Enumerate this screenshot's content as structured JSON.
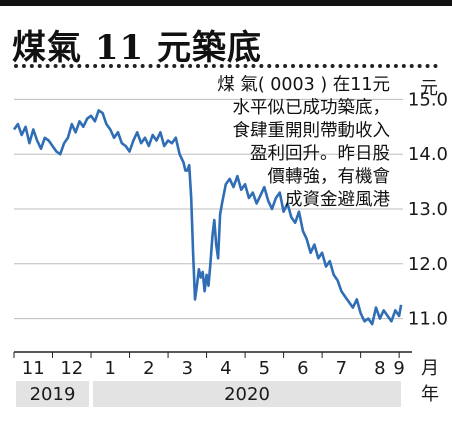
{
  "chart_data": {
    "type": "line",
    "title": "煤氣 11 元築底",
    "annotation": [
      "煤 氣( 0003 ) 在11元",
      "水平似已成功築底，",
      "食肆重開則帶動收入",
      "盈利回升。昨日股",
      "價轉強，有機會",
      "成資金避風港"
    ],
    "ylabel": "元",
    "xlabel": "月",
    "year_axis_label": "年",
    "y_ticks": [
      "15.0",
      "14.0",
      "13.0",
      "12.0",
      "11.0"
    ],
    "y_tick_values": [
      15.0,
      14.0,
      13.0,
      12.0,
      11.0
    ],
    "ylim": [
      10.5,
      15.5
    ],
    "x_range": [
      0,
      10.1
    ],
    "month_labels": [
      {
        "label": "11",
        "x": 0.5
      },
      {
        "label": "12",
        "x": 1.5
      },
      {
        "label": "1",
        "x": 2.5
      },
      {
        "label": "2",
        "x": 3.5
      },
      {
        "label": "3",
        "x": 4.5
      },
      {
        "label": "4",
        "x": 5.5
      },
      {
        "label": "5",
        "x": 6.5
      },
      {
        "label": "6",
        "x": 7.5
      },
      {
        "label": "7",
        "x": 8.5
      },
      {
        "label": "8",
        "x": 9.5
      },
      {
        "label": "9",
        "x": 10.0
      }
    ],
    "years": [
      {
        "label": "2019",
        "start": 0,
        "end": 2
      },
      {
        "label": "2020",
        "start": 2,
        "end": 10.1
      }
    ],
    "grid": true,
    "colors": {
      "line": "#2f6db5",
      "grid": "#bdbdbd",
      "year_band": "#e3e3e3",
      "text": "#1a1a1a"
    },
    "series": [
      {
        "x": [
          0.0,
          0.1,
          0.2,
          0.3,
          0.4,
          0.5,
          0.6,
          0.7,
          0.8,
          0.9,
          1.0,
          1.1,
          1.2,
          1.3,
          1.4,
          1.5,
          1.6,
          1.7,
          1.8,
          1.9,
          2.0,
          2.1,
          2.2,
          2.3,
          2.4,
          2.5,
          2.6,
          2.7,
          2.8,
          2.9,
          3.0,
          3.1,
          3.2,
          3.3,
          3.4,
          3.5,
          3.6,
          3.7,
          3.8,
          3.9,
          4.0,
          4.1,
          4.2,
          4.3,
          4.4,
          4.45,
          4.5,
          4.55,
          4.6,
          4.65,
          4.7,
          4.75,
          4.8,
          4.85,
          4.9,
          4.95,
          5.0,
          5.05,
          5.1,
          5.15,
          5.2,
          5.25,
          5.3,
          5.35,
          5.4,
          5.5,
          5.6,
          5.7,
          5.8,
          5.9,
          6.0,
          6.1,
          6.2,
          6.3,
          6.4,
          6.5,
          6.6,
          6.7,
          6.8,
          6.9,
          7.0,
          7.1,
          7.2,
          7.3,
          7.4,
          7.5,
          7.6,
          7.7,
          7.8,
          7.9,
          8.0,
          8.1,
          8.2,
          8.3,
          8.4,
          8.5,
          8.6,
          8.7,
          8.8,
          8.9,
          9.0,
          9.1,
          9.2,
          9.3,
          9.4,
          9.5,
          9.6,
          9.7,
          9.8,
          9.9,
          10.0,
          10.05
        ],
        "y": [
          14.45,
          14.55,
          14.35,
          14.5,
          14.2,
          14.45,
          14.25,
          14.1,
          14.3,
          14.25,
          14.15,
          14.05,
          14.0,
          14.2,
          14.3,
          14.55,
          14.4,
          14.6,
          14.5,
          14.65,
          14.7,
          14.6,
          14.8,
          14.75,
          14.55,
          14.45,
          14.3,
          14.4,
          14.2,
          14.15,
          14.05,
          14.25,
          14.4,
          14.2,
          14.3,
          14.15,
          14.35,
          14.25,
          14.4,
          14.15,
          14.25,
          14.2,
          14.3,
          14.0,
          13.85,
          13.7,
          13.7,
          13.8,
          13.2,
          12.2,
          11.35,
          11.6,
          11.9,
          11.75,
          11.85,
          11.5,
          11.8,
          11.6,
          12.0,
          12.5,
          12.8,
          12.35,
          12.1,
          12.9,
          13.1,
          13.45,
          13.55,
          13.4,
          13.6,
          13.35,
          13.45,
          13.2,
          13.3,
          13.1,
          13.25,
          13.4,
          13.15,
          13.0,
          13.2,
          13.3,
          12.95,
          13.1,
          12.85,
          12.75,
          12.95,
          12.6,
          12.45,
          12.2,
          12.35,
          12.1,
          12.2,
          11.95,
          12.05,
          11.8,
          11.7,
          11.5,
          11.4,
          11.3,
          11.2,
          11.35,
          11.1,
          10.95,
          11.0,
          10.9,
          11.2,
          11.0,
          11.15,
          11.05,
          10.95,
          11.15,
          11.05,
          11.25
        ]
      }
    ]
  }
}
